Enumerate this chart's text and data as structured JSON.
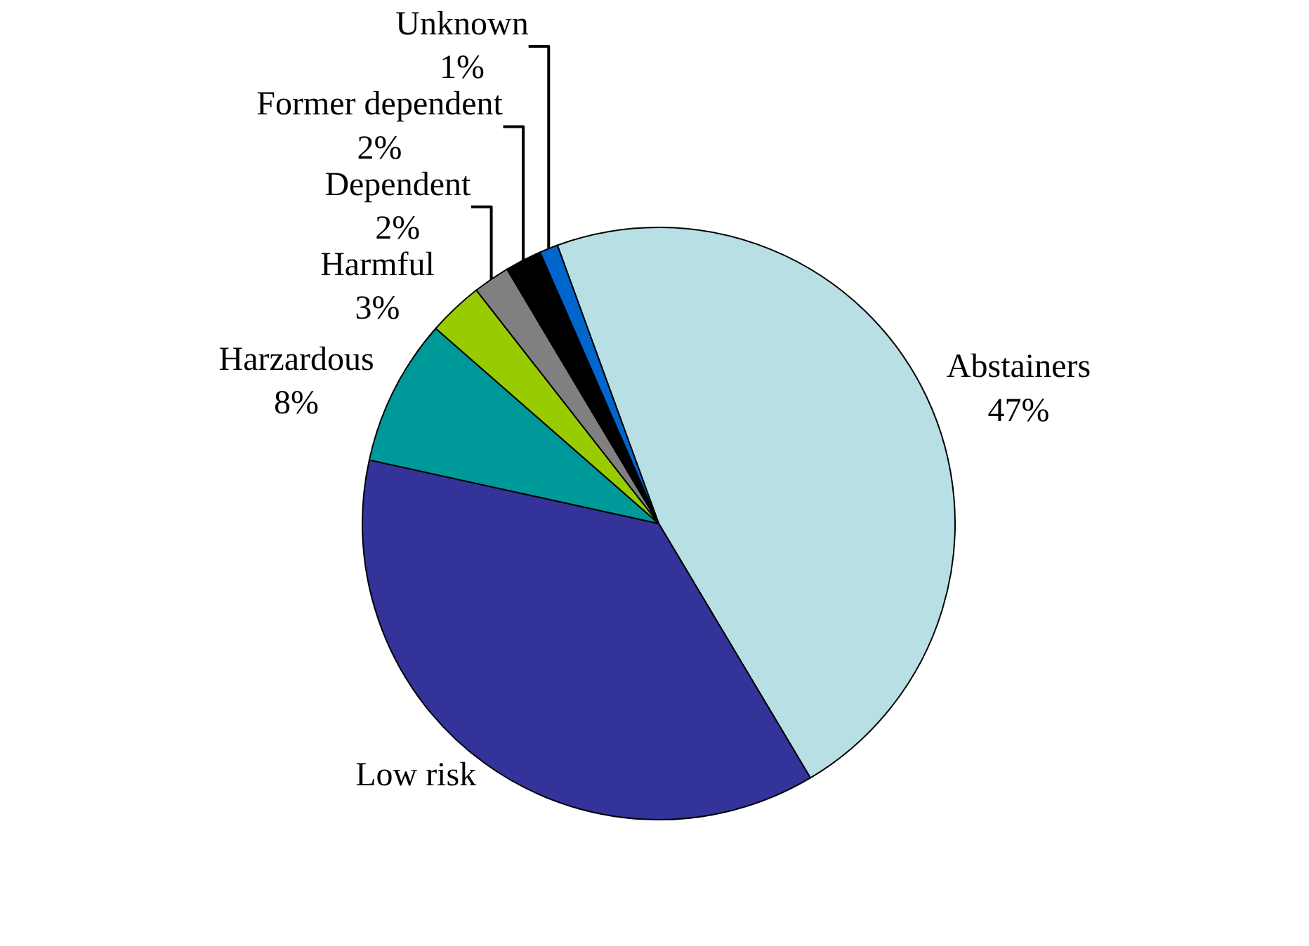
{
  "chart_data": {
    "type": "pie",
    "categories": [
      "Abstainers",
      "Low risk",
      "Harzardous",
      "Harmful",
      "Dependent",
      "Former dependent",
      "Unknown"
    ],
    "values": [
      47,
      37,
      8,
      3,
      2,
      2,
      1
    ],
    "value_labels": [
      "47%",
      null,
      "8%",
      "3%",
      "2%",
      "2%",
      "1%"
    ],
    "colors": [
      "#b8dfe3",
      "#333399",
      "#009999",
      "#99cc00",
      "#808080",
      "#000000",
      "#0066cc"
    ]
  }
}
